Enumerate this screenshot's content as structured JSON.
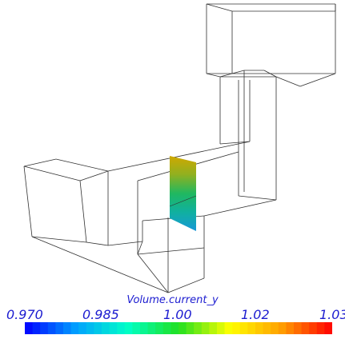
{
  "colorbar": {
    "title": "Volume.current_y",
    "ticks": [
      "0.970",
      "0.985",
      "1.00",
      "1.02",
      "1.03"
    ],
    "colors": [
      "#0000ff",
      "#00a0ff",
      "#00ffc8",
      "#20e020",
      "#ffff00",
      "#ffa000",
      "#ff0000"
    ],
    "segments": 40
  },
  "scene": {
    "wireframe_color": "#303030",
    "slice_colors": {
      "top": "#c8a000",
      "middle": "#20b060",
      "bottom": "#20a0d0"
    }
  }
}
